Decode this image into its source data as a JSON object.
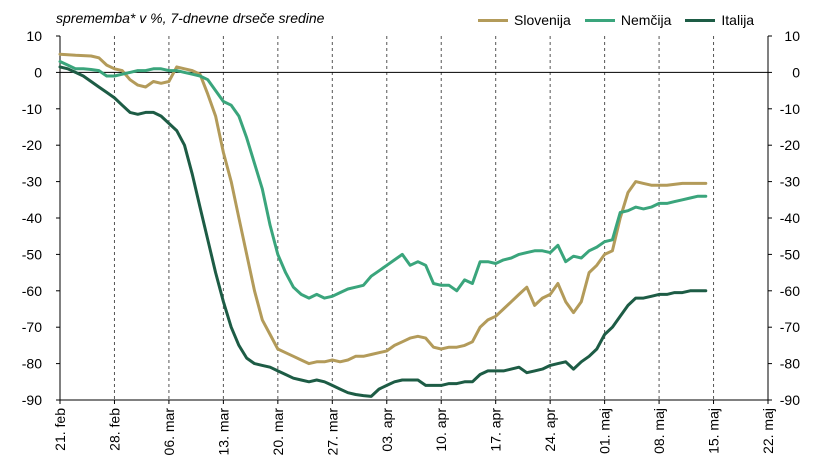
{
  "chart_data": {
    "type": "line",
    "subtitle": "sprememba* v %, 7-dnevne drseče sredine",
    "ylim": [
      -90,
      10
    ],
    "y_ticks": [
      "10",
      "0",
      "-10",
      "-20",
      "-30",
      "-40",
      "-50",
      "-60",
      "-70",
      "-80",
      "-90"
    ],
    "x_tick_labels": [
      "21. feb",
      "28. feb",
      "06. mar",
      "13. mar",
      "20. mar",
      "27. mar",
      "03. apr",
      "10. apr",
      "17. apr",
      "24. apr",
      "01. maj",
      "08. maj",
      "15. maj",
      "22. maj"
    ],
    "x_unit": "day index from 21. feb",
    "x_range": [
      0,
      91
    ],
    "grid": "vertical dashed at ticks; horizontal zero line",
    "legend_position": "top-right",
    "series": [
      {
        "name": "Slovenija",
        "color": "#b39b5a",
        "points": [
          [
            0,
            5
          ],
          [
            2,
            4.7
          ],
          [
            4,
            4.5
          ],
          [
            5,
            4
          ],
          [
            6,
            2
          ],
          [
            7,
            1
          ],
          [
            8,
            0.5
          ],
          [
            9,
            -2
          ],
          [
            10,
            -3.5
          ],
          [
            11,
            -4
          ],
          [
            12,
            -2.5
          ],
          [
            13,
            -3
          ],
          [
            14,
            -2.5
          ],
          [
            15,
            1.5
          ],
          [
            16,
            1
          ],
          [
            17,
            0.5
          ],
          [
            18,
            -0.5
          ],
          [
            19,
            -6
          ],
          [
            20,
            -12
          ],
          [
            21,
            -22
          ],
          [
            22,
            -30
          ],
          [
            23,
            -40
          ],
          [
            24,
            -50
          ],
          [
            25,
            -60
          ],
          [
            26,
            -68
          ],
          [
            27,
            -72
          ],
          [
            28,
            -76
          ],
          [
            29,
            -77
          ],
          [
            30,
            -78
          ],
          [
            31,
            -79
          ],
          [
            32,
            -80
          ],
          [
            33,
            -79.5
          ],
          [
            34,
            -79.5
          ],
          [
            35,
            -79
          ],
          [
            36,
            -79.5
          ],
          [
            37,
            -79
          ],
          [
            38,
            -78
          ],
          [
            39,
            -78
          ],
          [
            40,
            -77.5
          ],
          [
            41,
            -77
          ],
          [
            42,
            -76.5
          ],
          [
            43,
            -75
          ],
          [
            44,
            -74
          ],
          [
            45,
            -73
          ],
          [
            46,
            -72.5
          ],
          [
            47,
            -73
          ],
          [
            48,
            -75.5
          ],
          [
            49,
            -76
          ],
          [
            50,
            -75.5
          ],
          [
            51,
            -75.5
          ],
          [
            52,
            -75
          ],
          [
            53,
            -74
          ],
          [
            54,
            -70
          ],
          [
            55,
            -68
          ],
          [
            56,
            -67
          ],
          [
            57,
            -65
          ],
          [
            58,
            -63
          ],
          [
            59,
            -61
          ],
          [
            60,
            -59
          ],
          [
            61,
            -64
          ],
          [
            62,
            -62
          ],
          [
            63,
            -61
          ],
          [
            64,
            -58
          ],
          [
            65,
            -63
          ],
          [
            66,
            -66
          ],
          [
            67,
            -63
          ],
          [
            68,
            -55
          ],
          [
            69,
            -53
          ],
          [
            70,
            -50
          ],
          [
            71,
            -49
          ],
          [
            72,
            -40
          ],
          [
            73,
            -33
          ],
          [
            74,
            -30
          ],
          [
            75,
            -30.5
          ],
          [
            76,
            -31
          ],
          [
            78,
            -31
          ],
          [
            80,
            -30.5
          ],
          [
            83,
            -30.5
          ]
        ]
      },
      {
        "name": "Nemčija",
        "color": "#3aa57c",
        "points": [
          [
            0,
            3
          ],
          [
            1,
            2
          ],
          [
            2,
            1
          ],
          [
            3,
            1
          ],
          [
            4,
            0.8
          ],
          [
            5,
            0.5
          ],
          [
            6,
            -1
          ],
          [
            7,
            -1
          ],
          [
            8,
            -0.5
          ],
          [
            9,
            0
          ],
          [
            10,
            0.5
          ],
          [
            11,
            0.5
          ],
          [
            12,
            1
          ],
          [
            13,
            1
          ],
          [
            14,
            0.5
          ],
          [
            15,
            0.5
          ],
          [
            16,
            0
          ],
          [
            17,
            -0.5
          ],
          [
            18,
            -1
          ],
          [
            19,
            -2
          ],
          [
            20,
            -5
          ],
          [
            21,
            -8
          ],
          [
            22,
            -9
          ],
          [
            23,
            -12
          ],
          [
            24,
            -18
          ],
          [
            25,
            -25
          ],
          [
            26,
            -32
          ],
          [
            27,
            -42
          ],
          [
            28,
            -50
          ],
          [
            29,
            -55
          ],
          [
            30,
            -59
          ],
          [
            31,
            -61
          ],
          [
            32,
            -62
          ],
          [
            33,
            -61
          ],
          [
            34,
            -62
          ],
          [
            35,
            -61.5
          ],
          [
            36,
            -60.5
          ],
          [
            37,
            -59.5
          ],
          [
            38,
            -59
          ],
          [
            39,
            -58.5
          ],
          [
            40,
            -56
          ],
          [
            41,
            -54.5
          ],
          [
            42,
            -53
          ],
          [
            43,
            -51.5
          ],
          [
            44,
            -50
          ],
          [
            45,
            -53
          ],
          [
            46,
            -52
          ],
          [
            47,
            -53
          ],
          [
            48,
            -58
          ],
          [
            49,
            -58.5
          ],
          [
            50,
            -58.5
          ],
          [
            51,
            -60
          ],
          [
            52,
            -57
          ],
          [
            53,
            -58
          ],
          [
            54,
            -52
          ],
          [
            55,
            -52
          ],
          [
            56,
            -52.5
          ],
          [
            57,
            -51.5
          ],
          [
            58,
            -51
          ],
          [
            59,
            -50
          ],
          [
            60,
            -49.5
          ],
          [
            61,
            -49
          ],
          [
            62,
            -49
          ],
          [
            63,
            -49.5
          ],
          [
            64,
            -47.5
          ],
          [
            65,
            -52
          ],
          [
            66,
            -50.5
          ],
          [
            67,
            -51
          ],
          [
            68,
            -49
          ],
          [
            69,
            -48
          ],
          [
            70,
            -46.5
          ],
          [
            71,
            -46
          ],
          [
            72,
            -38.5
          ],
          [
            73,
            -38
          ],
          [
            74,
            -37
          ],
          [
            75,
            -37.5
          ],
          [
            76,
            -37
          ],
          [
            77,
            -36
          ],
          [
            78,
            -36
          ],
          [
            79,
            -35.5
          ],
          [
            80,
            -35
          ],
          [
            81,
            -34.5
          ],
          [
            82,
            -34
          ],
          [
            83,
            -34
          ]
        ]
      },
      {
        "name": "Italija",
        "color": "#1d5c45",
        "points": [
          [
            0,
            1.5
          ],
          [
            1,
            1
          ],
          [
            2,
            0
          ],
          [
            3,
            -1
          ],
          [
            4,
            -2.5
          ],
          [
            5,
            -4
          ],
          [
            6,
            -5.5
          ],
          [
            7,
            -7
          ],
          [
            8,
            -9
          ],
          [
            9,
            -11
          ],
          [
            10,
            -11.5
          ],
          [
            11,
            -11
          ],
          [
            12,
            -11
          ],
          [
            13,
            -12
          ],
          [
            14,
            -14
          ],
          [
            15,
            -16
          ],
          [
            16,
            -20
          ],
          [
            17,
            -28
          ],
          [
            18,
            -37
          ],
          [
            19,
            -46
          ],
          [
            20,
            -55
          ],
          [
            21,
            -63
          ],
          [
            22,
            -70
          ],
          [
            23,
            -75
          ],
          [
            24,
            -78.5
          ],
          [
            25,
            -80
          ],
          [
            26,
            -80.5
          ],
          [
            27,
            -81
          ],
          [
            28,
            -82
          ],
          [
            29,
            -83
          ],
          [
            30,
            -84
          ],
          [
            31,
            -84.5
          ],
          [
            32,
            -85
          ],
          [
            33,
            -84.5
          ],
          [
            34,
            -85
          ],
          [
            35,
            -86
          ],
          [
            36,
            -87
          ],
          [
            37,
            -88
          ],
          [
            38,
            -88.5
          ],
          [
            39,
            -88.8
          ],
          [
            40,
            -89
          ],
          [
            41,
            -87
          ],
          [
            42,
            -86
          ],
          [
            43,
            -85
          ],
          [
            44,
            -84.5
          ],
          [
            45,
            -84.5
          ],
          [
            46,
            -84.5
          ],
          [
            47,
            -86
          ],
          [
            48,
            -86
          ],
          [
            49,
            -86
          ],
          [
            50,
            -85.5
          ],
          [
            51,
            -85.5
          ],
          [
            52,
            -85
          ],
          [
            53,
            -85
          ],
          [
            54,
            -83
          ],
          [
            55,
            -82
          ],
          [
            56,
            -82
          ],
          [
            57,
            -82
          ],
          [
            58,
            -81.5
          ],
          [
            59,
            -81
          ],
          [
            60,
            -82.5
          ],
          [
            61,
            -82
          ],
          [
            62,
            -81.5
          ],
          [
            63,
            -80.5
          ],
          [
            64,
            -80
          ],
          [
            65,
            -79.5
          ],
          [
            66,
            -81.5
          ],
          [
            67,
            -79.5
          ],
          [
            68,
            -78
          ],
          [
            69,
            -76
          ],
          [
            70,
            -72
          ],
          [
            71,
            -70
          ],
          [
            72,
            -67
          ],
          [
            73,
            -64
          ],
          [
            74,
            -62
          ],
          [
            75,
            -62
          ],
          [
            76,
            -61.5
          ],
          [
            77,
            -61
          ],
          [
            78,
            -61
          ],
          [
            79,
            -60.5
          ],
          [
            80,
            -60.5
          ],
          [
            81,
            -60
          ],
          [
            83,
            -60
          ]
        ]
      }
    ]
  }
}
